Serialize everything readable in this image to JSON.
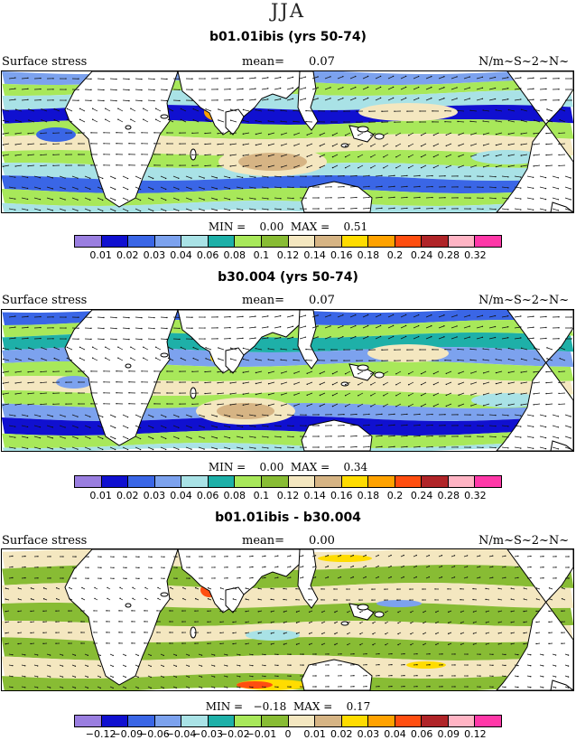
{
  "season_title": "JJA",
  "colors": {
    "scale": [
      "#9a7ee0",
      "#1010d0",
      "#3a66e6",
      "#7ca2ee",
      "#a9e2e6",
      "#1eb0a8",
      "#a8e85a",
      "#88bc34",
      "#f4e7c0",
      "#d6b484",
      "#ffdc00",
      "#ffa200",
      "#ff4e10",
      "#b02428",
      "#ffb4c4",
      "#ff38a8"
    ],
    "land": "#ffffff",
    "coast": "#000000"
  },
  "panels": [
    {
      "title": "b01.01ibis (yrs 50-74)",
      "variable": "Surface stress",
      "mean_label": "mean=",
      "mean_value": "0.07",
      "units": "N/m~S~2~N~",
      "stats": "MIN =    0.00  MAX =    0.51",
      "colorbar_labels": [
        "0.01",
        "0.02",
        "0.03",
        "0.04",
        "0.06",
        "0.08",
        "0.1",
        "0.12",
        "0.14",
        "0.16",
        "0.18",
        "0.2",
        "0.24",
        "0.28",
        "0.32"
      ]
    },
    {
      "title": "b30.004 (yrs 50-74)",
      "variable": "Surface stress",
      "mean_label": "mean=",
      "mean_value": "0.07",
      "units": "N/m~S~2~N~",
      "stats": "MIN =    0.00  MAX =    0.34",
      "colorbar_labels": [
        "0.01",
        "0.02",
        "0.03",
        "0.04",
        "0.06",
        "0.08",
        "0.1",
        "0.12",
        "0.14",
        "0.16",
        "0.18",
        "0.2",
        "0.24",
        "0.28",
        "0.32"
      ]
    },
    {
      "title": "b01.01ibis - b30.004",
      "variable": "Surface stress",
      "mean_label": "mean=",
      "mean_value": "0.00",
      "units": "N/m~S~2~N~",
      "stats": "MIN =   −0.18  MAX =    0.17",
      "colorbar_labels": [
        "−0.12",
        "−0.09",
        "−0.06",
        "−0.04",
        "−0.03",
        "−0.02",
        "−0.01",
        "0",
        "0.01",
        "0.02",
        "0.03",
        "0.04",
        "0.06",
        "0.09",
        "0.12"
      ]
    }
  ],
  "chart_data": {
    "type": "heatmap",
    "projection": "cylindrical equidistant, 20E to 300E longitude, 45S to 65N latitude",
    "field": "JJA surface wind stress magnitude with stress vectors",
    "panels": [
      {
        "name": "b01.01ibis (yrs 50-74)",
        "mean": 0.07,
        "min": 0.0,
        "max": 0.51,
        "levels": [
          0.01,
          0.02,
          0.03,
          0.04,
          0.06,
          0.08,
          0.1,
          0.12,
          0.14,
          0.16,
          0.18,
          0.2,
          0.24,
          0.28,
          0.32
        ]
      },
      {
        "name": "b30.004 (yrs 50-74)",
        "mean": 0.07,
        "min": 0.0,
        "max": 0.34,
        "levels": [
          0.01,
          0.02,
          0.03,
          0.04,
          0.06,
          0.08,
          0.1,
          0.12,
          0.14,
          0.16,
          0.18,
          0.2,
          0.24,
          0.28,
          0.32
        ]
      },
      {
        "name": "b01.01ibis - b30.004",
        "mean": 0.0,
        "min": -0.18,
        "max": 0.17,
        "levels": [
          -0.12,
          -0.09,
          -0.06,
          -0.04,
          -0.03,
          -0.02,
          -0.01,
          0,
          0.01,
          0.02,
          0.03,
          0.04,
          0.06,
          0.09,
          0.12
        ]
      }
    ]
  }
}
